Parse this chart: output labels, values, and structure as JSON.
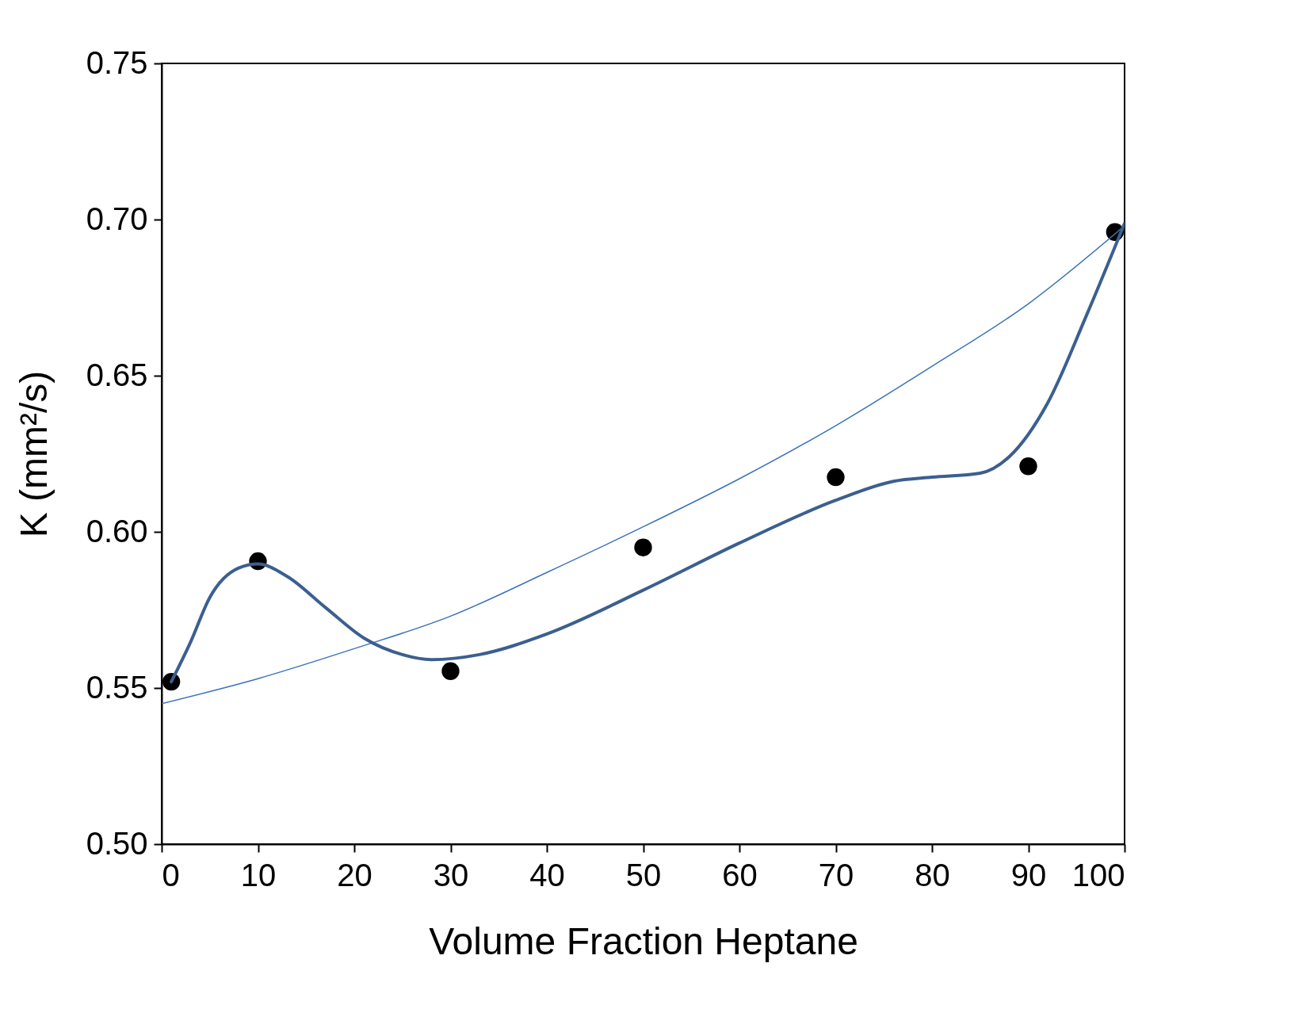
{
  "chart_data": {
    "type": "scatter",
    "xlabel": "Volume Fraction Heptane",
    "ylabel": "K (mm²/s)",
    "xlim": [
      0,
      100
    ],
    "xticks": [
      0,
      10,
      20,
      30,
      40,
      50,
      60,
      70,
      80,
      90,
      100
    ],
    "ylim": [
      0.5,
      0.75
    ],
    "yticks": [
      {
        "value": 0.5,
        "label": "0.50"
      },
      {
        "value": 0.55,
        "label": "0.55"
      },
      {
        "value": 0.6,
        "label": "0.60"
      },
      {
        "value": 0.65,
        "label": "0.65"
      },
      {
        "value": 0.7,
        "label": "0.70"
      },
      {
        "value": 0.75,
        "label": "0.75"
      }
    ],
    "grid": false,
    "series": [
      {
        "type": "line",
        "marker": "none",
        "color": "#3a72b8",
        "x": [
          0,
          10,
          20,
          30,
          40,
          50,
          60,
          70,
          80,
          90,
          100
        ],
        "values": [
          0.545,
          0.553,
          0.5626,
          0.573,
          0.587,
          0.6016,
          0.617,
          0.634,
          0.653,
          0.673,
          0.698
        ]
      },
      {
        "type": "line",
        "marker": "none",
        "color": "#3b5f8f",
        "x": [
          1,
          3,
          5,
          8,
          10,
          13,
          17,
          21,
          25,
          28,
          33,
          40,
          50,
          60,
          70,
          76,
          80,
          85,
          88,
          92,
          96,
          100
        ],
        "values": [
          0.552,
          0.5647,
          0.579,
          0.5884,
          0.5897,
          0.5858,
          0.5758,
          0.566,
          0.5607,
          0.5591,
          0.5607,
          0.5673,
          0.5813,
          0.5964,
          0.6101,
          0.6162,
          0.6175,
          0.6188,
          0.624,
          0.6412,
          0.669,
          0.6988
        ]
      },
      {
        "marker": "circle",
        "color": "#000000",
        "x": [
          1,
          10,
          30,
          50,
          70,
          90,
          99
        ],
        "values": [
          0.552,
          0.5906,
          0.5554,
          0.595,
          0.6175,
          0.621,
          0.696
        ]
      }
    ]
  }
}
